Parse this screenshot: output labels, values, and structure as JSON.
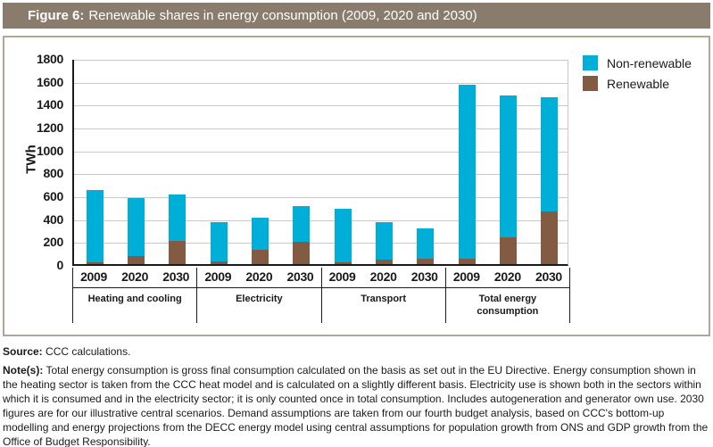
{
  "header": {
    "figure_label": "Figure 6:",
    "title": "Renewable shares in energy consumption (2009, 2020 and 2030)"
  },
  "source": {
    "label": "Source:",
    "text": "CCC calculations."
  },
  "notes": {
    "label": "Note(s):",
    "text": "Total energy consumption is gross final consumption calculated on the basis as set out in the EU Directive. Energy consumption shown in the heating sector is taken from the CCC heat model and is calculated on a slightly different basis. Electricity use is shown both in the sectors within which it is consumed and in the electricity sector; it is only counted once in total consumption. Includes autogeneration and generator own use. 2030 figures are for our illustrative central scenarios. Demand assumptions are taken from our fourth budget analysis, based on CCC's bottom-up modelling and energy projections from the DECC energy model using central assumptions for population growth from ONS and GDP growth from the Office of Budget Responsibility."
  },
  "colors": {
    "header_background": "#8A7C6C",
    "non_renewable": "#00AFD8",
    "renewable": "#835A42",
    "gridline": "#C9C9C9",
    "axis": "#1A1A1A",
    "panel_border": "#B1A799"
  },
  "chart_data": {
    "type": "bar",
    "stacked": true,
    "title": "Figure 6: Renewable shares in energy consumption (2009, 2020 and 2030)",
    "unit": "TWh",
    "ylabel": "TWh",
    "xlabel": "",
    "ylim": [
      0,
      1800
    ],
    "ytick_interval": 200,
    "grid": true,
    "legend_position": "top-right",
    "legend": [
      {
        "label": "Non-renewable",
        "color": "#00AFD8"
      },
      {
        "label": "Renewable",
        "color": "#835A42"
      }
    ],
    "groups": [
      {
        "label": "Heating and cooling",
        "bars": [
          {
            "year": "2009",
            "renewable": 15,
            "non_renewable": 630,
            "total": 645
          },
          {
            "year": "2020",
            "renewable": 70,
            "non_renewable": 510,
            "total": 580
          },
          {
            "year": "2030",
            "renewable": 205,
            "non_renewable": 400,
            "total": 605
          }
        ]
      },
      {
        "label": "Electricity",
        "bars": [
          {
            "year": "2009",
            "renewable": 25,
            "non_renewable": 345,
            "total": 370
          },
          {
            "year": "2020",
            "renewable": 125,
            "non_renewable": 280,
            "total": 405
          },
          {
            "year": "2030",
            "renewable": 195,
            "non_renewable": 310,
            "total": 505
          }
        ]
      },
      {
        "label": "Transport",
        "bars": [
          {
            "year": "2009",
            "renewable": 15,
            "non_renewable": 465,
            "total": 480
          },
          {
            "year": "2020",
            "renewable": 40,
            "non_renewable": 330,
            "total": 370
          },
          {
            "year": "2030",
            "renewable": 50,
            "non_renewable": 265,
            "total": 315
          }
        ]
      },
      {
        "label": "Total energy consumption",
        "bars": [
          {
            "year": "2009",
            "renewable": 50,
            "non_renewable": 1520,
            "total": 1570
          },
          {
            "year": "2020",
            "renewable": 230,
            "non_renewable": 1245,
            "total": 1475
          },
          {
            "year": "2030",
            "renewable": 460,
            "non_renewable": 1000,
            "total": 1460
          }
        ]
      }
    ]
  }
}
